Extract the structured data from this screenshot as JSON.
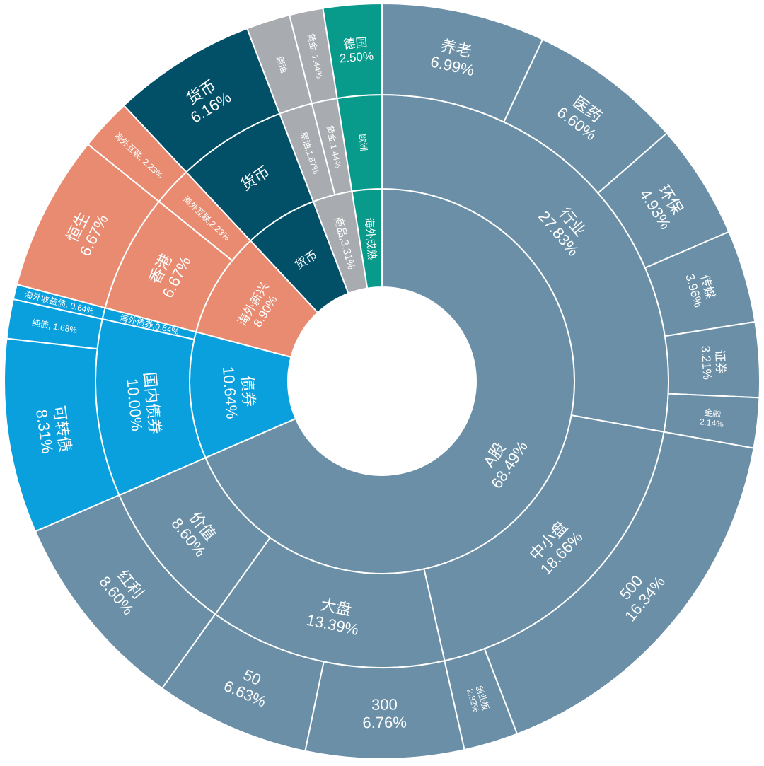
{
  "chart_data": {
    "type": "sunburst",
    "title": "",
    "colors": {
      "a_share": "#6a8fa7",
      "bond": "#0aa0dd",
      "overseas_emerging": "#e88b71",
      "money": "#024f68",
      "commodity": "#a8abaf",
      "overseas_mature": "#089a8b",
      "separator": "#ffffff"
    },
    "rings": [
      {
        "level": 1,
        "segments": [
          {
            "name": "A股",
            "label": "A股\n68.49%",
            "value": 68.49,
            "group": "a_share"
          },
          {
            "name": "债券",
            "label": "债券\n10.64%",
            "value": 10.64,
            "group": "bond"
          },
          {
            "name": "海外新兴",
            "label": "海外新兴\n8.90%",
            "value": 8.9,
            "group": "overseas_emerging"
          },
          {
            "name": "货币",
            "label": "货币",
            "value": 6.16,
            "group": "money"
          },
          {
            "name": "商品",
            "label": "商品,3.31%",
            "value": 3.31,
            "group": "commodity"
          },
          {
            "name": "海外成熟",
            "label": "海外成熟",
            "value": 2.5,
            "group": "overseas_mature"
          }
        ]
      },
      {
        "level": 2,
        "segments": [
          {
            "name": "行业",
            "label": "行业\n27.83%",
            "value": 27.83,
            "group": "a_share"
          },
          {
            "name": "中小盘",
            "label": "中小盘\n18.66%",
            "value": 18.66,
            "group": "a_share"
          },
          {
            "name": "大盘",
            "label": "大盘\n13.39%",
            "value": 13.39,
            "group": "a_share"
          },
          {
            "name": "价值",
            "label": "价值\n8.60%",
            "value": 8.6,
            "group": "a_share"
          },
          {
            "name": "国内债券",
            "label": "国内债券\n10.00%",
            "value": 10.0,
            "group": "bond"
          },
          {
            "name": "海外债券",
            "label": "海外债券,0.64%",
            "value": 0.64,
            "group": "bond"
          },
          {
            "name": "香港",
            "label": "香港\n6.67%",
            "value": 6.67,
            "group": "overseas_emerging"
          },
          {
            "name": "海外互联",
            "label": "海外互联,2.23%",
            "value": 2.23,
            "group": "overseas_emerging"
          },
          {
            "name": "货币",
            "label": "货币",
            "value": 6.16,
            "group": "money"
          },
          {
            "name": "原油",
            "label": "原油,1.87%",
            "value": 1.87,
            "group": "commodity"
          },
          {
            "name": "黄金",
            "label": "黄金,1.44%",
            "value": 1.44,
            "group": "commodity"
          },
          {
            "name": "欧洲",
            "label": "欧洲",
            "value": 2.5,
            "group": "overseas_mature"
          }
        ]
      },
      {
        "level": 3,
        "segments": [
          {
            "name": "养老",
            "label": "养老\n6.99%",
            "value": 6.99,
            "group": "a_share"
          },
          {
            "name": "医药",
            "label": "医药\n6.60%",
            "value": 6.6,
            "group": "a_share"
          },
          {
            "name": "环保",
            "label": "环保\n4.93%",
            "value": 4.93,
            "group": "a_share"
          },
          {
            "name": "传媒",
            "label": "传媒\n3.96%",
            "value": 3.96,
            "group": "a_share"
          },
          {
            "name": "证券",
            "label": "证券\n3.21%",
            "value": 3.21,
            "group": "a_share"
          },
          {
            "name": "金融",
            "label": "金融\n2.14%",
            "value": 2.14,
            "group": "a_share"
          },
          {
            "name": "500",
            "label": "500\n16.34%",
            "value": 16.34,
            "group": "a_share"
          },
          {
            "name": "创业板",
            "label": "创业板\n2.32%",
            "value": 2.32,
            "group": "a_share"
          },
          {
            "name": "300",
            "label": "300\n6.76%",
            "value": 6.76,
            "group": "a_share"
          },
          {
            "name": "50",
            "label": "50\n6.63%",
            "value": 6.63,
            "group": "a_share"
          },
          {
            "name": "红利",
            "label": "红利\n8.60%",
            "value": 8.6,
            "group": "a_share"
          },
          {
            "name": "可转债",
            "label": "可转债\n8.31%",
            "value": 8.31,
            "group": "bond"
          },
          {
            "name": "纯债",
            "label": "纯债, 1.68%",
            "value": 1.68,
            "group": "bond"
          },
          {
            "name": "海外收益债",
            "label": "海外收益债, 0.64%",
            "value": 0.64,
            "group": "bond"
          },
          {
            "name": "恒生",
            "label": "恒生\n6.67%",
            "value": 6.67,
            "group": "overseas_emerging"
          },
          {
            "name": "海外互联",
            "label": "海外互联, 2.23%",
            "value": 2.23,
            "group": "overseas_emerging"
          },
          {
            "name": "货币",
            "label": "货币\n6.16%",
            "value": 6.16,
            "group": "money"
          },
          {
            "name": "原油",
            "label": "原油",
            "value": 1.87,
            "group": "commodity"
          },
          {
            "name": "黄金",
            "label": "黄金, 1.44%",
            "value": 1.44,
            "group": "commodity"
          },
          {
            "name": "德国",
            "label": "德国\n2.50%",
            "value": 2.5,
            "group": "overseas_mature"
          }
        ]
      }
    ]
  }
}
